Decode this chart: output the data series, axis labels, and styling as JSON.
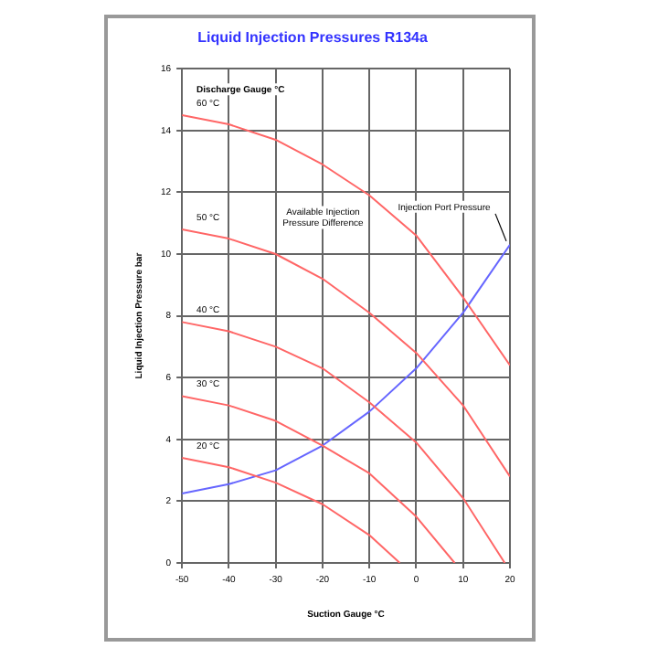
{
  "chart_data": {
    "type": "line",
    "title": "Liquid Injection Pressures R134a",
    "xlabel": "Suction Gauge °C",
    "ylabel": "Liquid Injection Pressure bar",
    "xlim": [
      -50,
      20
    ],
    "xticks": [
      -50,
      -40,
      -30,
      -20,
      -10,
      0,
      10,
      20
    ],
    "ylim": [
      0,
      16
    ],
    "yticks": [
      0,
      2,
      4,
      6,
      8,
      10,
      12,
      14,
      16
    ],
    "grid": true,
    "legend": false,
    "marker": "none",
    "series": [
      {
        "name": "60 °C",
        "color": "#ff6666",
        "x": [
          -50,
          -40,
          -30,
          -20,
          -10,
          0,
          10,
          20
        ],
        "values": [
          14.5,
          14.2,
          13.7,
          12.9,
          11.9,
          10.6,
          8.6,
          6.4
        ]
      },
      {
        "name": "50 °C",
        "color": "#ff6666",
        "x": [
          -50,
          -40,
          -30,
          -20,
          -10,
          0,
          10,
          20
        ],
        "values": [
          10.8,
          10.5,
          10.0,
          9.2,
          8.1,
          6.8,
          5.1,
          2.8
        ]
      },
      {
        "name": "40 °C",
        "color": "#ff6666",
        "x": [
          -50,
          -40,
          -30,
          -20,
          -10,
          0,
          10,
          18.9
        ],
        "values": [
          7.8,
          7.5,
          7.0,
          6.3,
          5.2,
          3.9,
          2.1,
          0
        ]
      },
      {
        "name": "30 °C",
        "color": "#ff6666",
        "x": [
          -50,
          -40,
          -30,
          -20,
          -10,
          0,
          8.2
        ],
        "values": [
          5.4,
          5.1,
          4.6,
          3.8,
          2.9,
          1.5,
          0
        ]
      },
      {
        "name": "20 °C",
        "color": "#ff6666",
        "x": [
          -50,
          -40,
          -30,
          -20,
          -10,
          -3.5
        ],
        "values": [
          3.4,
          3.1,
          2.6,
          1.9,
          0.9,
          0
        ]
      },
      {
        "color": "#6666ff",
        "x": [
          -50,
          -40,
          -30,
          -20,
          -10,
          0,
          10,
          20
        ],
        "values": [
          2.25,
          2.55,
          3.0,
          3.8,
          4.9,
          6.3,
          8.1,
          10.3
        ]
      }
    ],
    "annotations": [
      "Discharge Gauge °C",
      "Available Injection Pressure Difference",
      {
        "text": "Injection Port Pressure",
        "x": 20,
        "y": 10.3
      }
    ]
  }
}
